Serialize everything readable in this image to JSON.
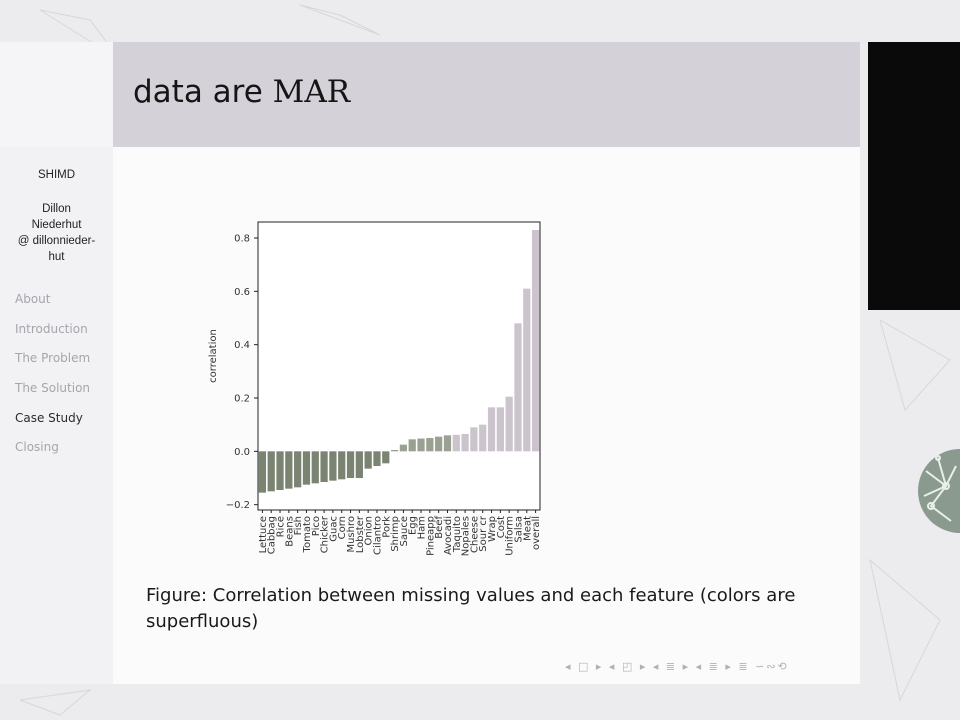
{
  "slide": {
    "title_text": "data are ",
    "title_math": "MAR"
  },
  "sidebar": {
    "short_title": "SHIMD",
    "author_lines": [
      "Dillon",
      "Niederhut",
      "@ dillonnieder-",
      "hut"
    ],
    "nav": [
      {
        "label": "About",
        "active": false
      },
      {
        "label": "Introduction",
        "active": false
      },
      {
        "label": "The Problem",
        "active": false
      },
      {
        "label": "The Solution",
        "active": false
      },
      {
        "label": "Case Study",
        "active": true
      },
      {
        "label": "Closing",
        "active": false
      }
    ]
  },
  "caption": {
    "prefix": "Figure:",
    "text": "Correlation between missing values and each feature (colors are superfluous)"
  },
  "navigation_symbols": "◂ □ ▸ ◂ ◰ ▸ ◂ ≣ ▸ ◂ ≣ ▸ ≣ ∽∾⟲",
  "colors": {
    "titlebar": "#d5d1d8",
    "bar_dark": "#7b8472",
    "bar_mid": "#9aa193",
    "bar_light": "#cbc4cd",
    "black_panel": "#0a0a0a"
  },
  "chart_data": {
    "type": "bar",
    "ylabel": "correlation",
    "xlabel": "",
    "ylim": [
      -0.22,
      0.86
    ],
    "yticks": [
      -0.2,
      0.0,
      0.2,
      0.4,
      0.6,
      0.8
    ],
    "ytick_labels": [
      "−0.2",
      "0.0",
      "0.2",
      "0.4",
      "0.6",
      "0.8"
    ],
    "categories": [
      "Lettuce",
      "Cabbag",
      "Rice",
      "Beans",
      "Fish",
      "Tomato",
      "Pico",
      "Chicker",
      "Guac",
      "Corn",
      "Mushro",
      "Lobster",
      "Onion",
      "Cilantro",
      "Pork",
      "Shrimp",
      "Sauce",
      "Egg",
      "Ham",
      "Pineapp",
      "Beef",
      "Avocadi",
      "Taquito",
      "Nopales",
      "Cheese",
      "Sour cr",
      "Wrap",
      "Cost",
      "Uniform",
      "Salsa",
      "Meat",
      "overall"
    ],
    "values": [
      -0.155,
      -0.15,
      -0.145,
      -0.14,
      -0.135,
      -0.125,
      -0.12,
      -0.115,
      -0.11,
      -0.105,
      -0.1,
      -0.1,
      -0.065,
      -0.055,
      -0.045,
      0.005,
      0.025,
      0.045,
      0.048,
      0.05,
      0.055,
      0.06,
      0.062,
      0.065,
      0.09,
      0.1,
      0.165,
      0.165,
      0.205,
      0.48,
      0.61,
      0.83
    ],
    "grid": false
  }
}
